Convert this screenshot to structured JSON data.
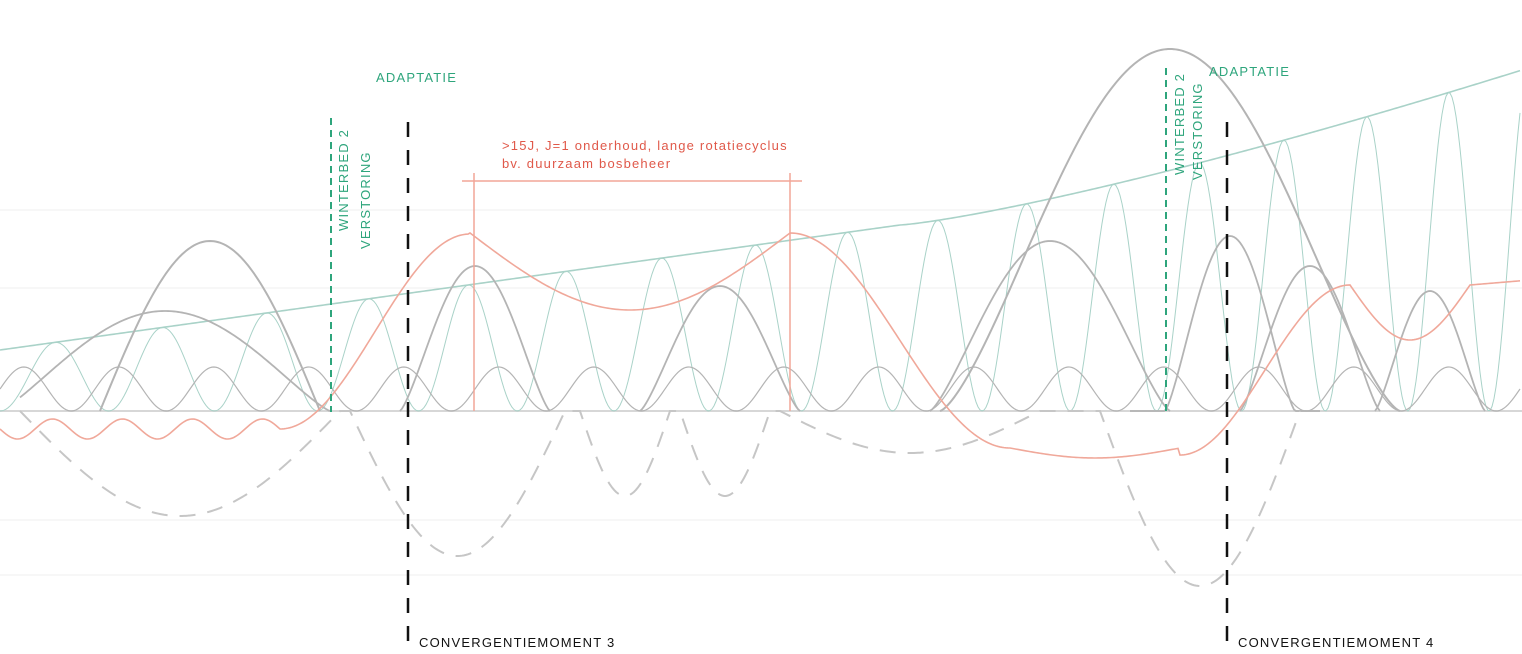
{
  "colors": {
    "green": "#2ea57c",
    "red": "#e0594a",
    "black": "#111111",
    "grey_wave": "#b4b4b4",
    "teal_wave": "#a9d2c8",
    "salmon_wave": "#f0a89a",
    "grid": "#eeeeee"
  },
  "labels": {
    "adaptatie_left": "ADAPTATIE",
    "adaptatie_right": "ADAPTATIE",
    "winterbed_left": "WINTERBED 2",
    "verstoring_left": "VERSTORING",
    "winterbed_right": "WINTERBED 2",
    "verstoring_right": "VERSTORING",
    "annotation_line1": ">15J, J=1 onderhoud, lange rotatiecyclus",
    "annotation_line2": "bv. duurzaam bosbeheer",
    "convergence_3": "CONVERGENTIEMOMENT 3",
    "convergence_4": "CONVERGENTIEMOMENT 4"
  }
}
